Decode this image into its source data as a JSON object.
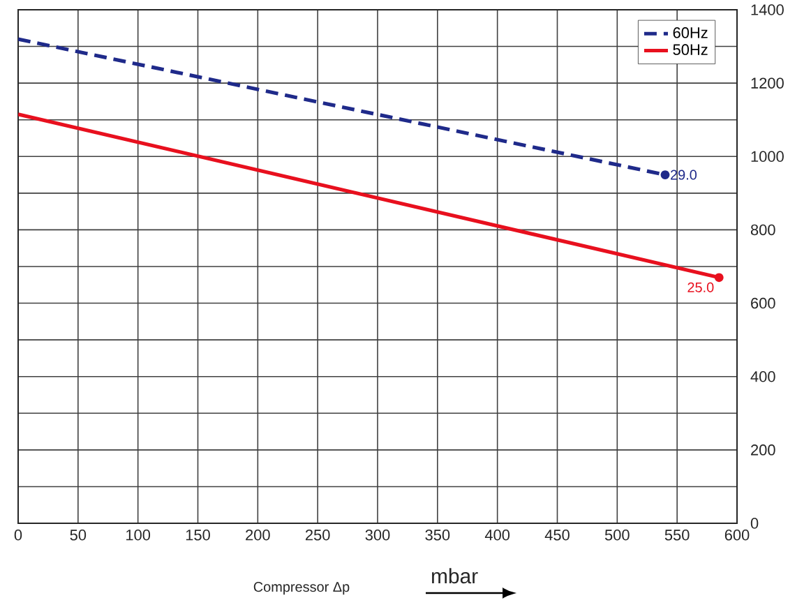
{
  "chart_data": {
    "type": "line",
    "xlabel": "Compressor Δp",
    "xlim": [
      0,
      600
    ],
    "xticks": [
      0,
      50,
      100,
      150,
      200,
      250,
      300,
      350,
      400,
      450,
      500,
      550,
      600
    ],
    "ylim": [
      0,
      1400
    ],
    "yticks": [
      0,
      {
        "value": 100,
        "label": null
      },
      200,
      {
        "value": 300,
        "label": null
      },
      400,
      {
        "value": 500,
        "label": null
      },
      600,
      {
        "value": 700,
        "label": null
      },
      800,
      {
        "value": 900,
        "label": null
      },
      1000,
      {
        "value": 1100,
        "label": null
      },
      1200,
      {
        "value": 1300,
        "label": null
      },
      1400
    ],
    "series": [
      {
        "name": "60Hz",
        "color": "#1f2a8a",
        "line_style": "dashed",
        "x": [
          0,
          540
        ],
        "values": [
          1320,
          950
        ]
      },
      {
        "name": "50Hz",
        "color": "#e8101e",
        "line_style": "solid",
        "x": [
          0,
          585
        ],
        "values": [
          1115,
          670
        ]
      }
    ],
    "annotations": [
      {
        "text": "29.0",
        "x": 540,
        "y": 950
      },
      {
        "text": "25.0",
        "x": 585,
        "y": 670
      },
      "mbar"
    ],
    "grid": true,
    "legend": "top right"
  }
}
